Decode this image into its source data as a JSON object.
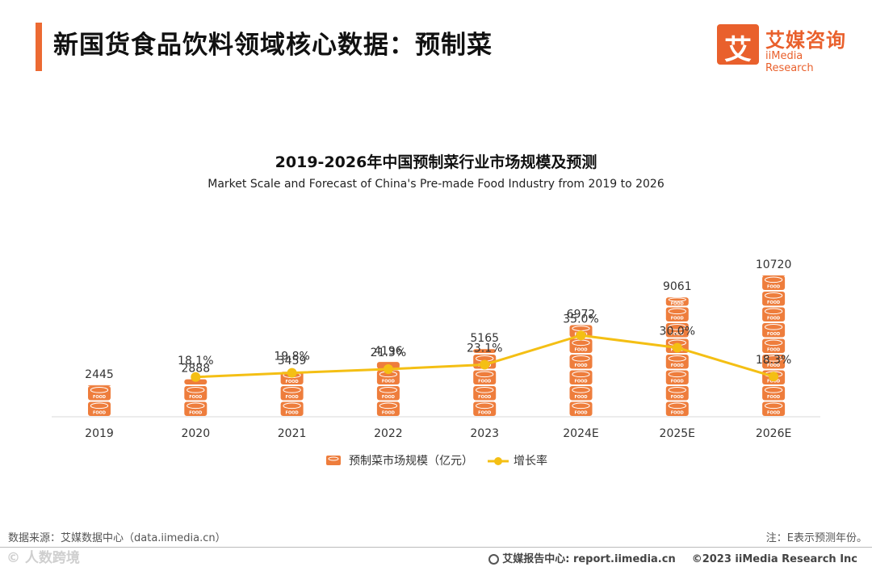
{
  "page": {
    "title": "新国货食品饮料领域核心数据：预制菜",
    "source": "数据来源：艾媒数据中心（data.iimedia.cn）",
    "note": "注：E表示预测年份。"
  },
  "logo": {
    "glyph": "艾",
    "cn": "艾媒咨询",
    "en": "iiMedia Research"
  },
  "footer": {
    "watermark": "© 人数跨境",
    "report": "艾媒报告中心: report.iimedia.cn",
    "copyright": "©2023  iiMedia Research  Inc"
  },
  "colors": {
    "accent": "#ec6a32",
    "bar": "#ee7d3c",
    "line": "#f4bf14",
    "axis": "#d9d9d9"
  },
  "chart_data": {
    "type": "bar",
    "title": "2019-2026年中国预制菜行业市场规模及预测",
    "subtitle": "Market Scale and Forecast of China's Pre-made Food Industry from 2019 to 2026",
    "categories": [
      "2019",
      "2020",
      "2021",
      "2022",
      "2023",
      "2024E",
      "2025E",
      "2026E"
    ],
    "series": [
      {
        "name": "预制菜市场规模（亿元）",
        "type": "bar",
        "unit": "FOOD",
        "values": [
          2445,
          2888,
          3459,
          4196,
          5165,
          6972,
          9061,
          10720
        ],
        "labels": [
          "2445",
          "2888",
          "3459",
          "4196",
          "5165",
          "6972",
          "9061",
          "10720"
        ]
      },
      {
        "name": "增长率",
        "type": "line",
        "values": [
          null,
          18.1,
          19.8,
          21.3,
          23.1,
          35.0,
          30.0,
          18.3
        ],
        "labels": [
          "",
          "18.1%",
          "19.8%",
          "21.3%",
          "23.1%",
          "35.0%",
          "30.0%",
          "18.3%"
        ]
      }
    ],
    "ylim_bar": [
      0,
      10720
    ],
    "ylim_line": [
      0,
      60
    ],
    "grid": false,
    "legend": "bottom-center"
  }
}
